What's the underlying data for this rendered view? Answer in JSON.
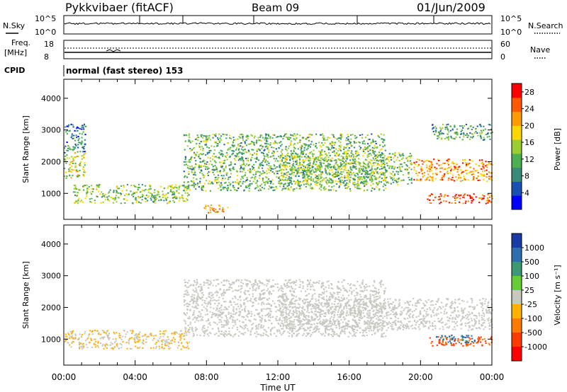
{
  "header": {
    "site": "Pykkvibaer (fitACF)",
    "beam": "Beam 09",
    "date": "01/Jun/2009"
  },
  "top_panels": {
    "nsky_label": "N.Sky",
    "nsky_ticks": [
      "10^5",
      "10^0"
    ],
    "nsearch_label": "N.Search",
    "nsearch_ticks": [
      "10^5",
      "10^0"
    ],
    "freq_label_1": "Freq.",
    "freq_label_2": "[MHz]",
    "freq_ticks": [
      "18",
      "8"
    ],
    "nave_label": "Nave",
    "nave_ticks": [
      "60",
      "0"
    ],
    "cpid_label": "CPID",
    "cpid_text": "normal (fast stereo) 153"
  },
  "colors": {
    "power_scale": [
      "#0000ff",
      "#1a4fb5",
      "#3a8a7a",
      "#4caf50",
      "#9acd32",
      "#ffd700",
      "#ff9a00",
      "#ff5a00",
      "#ff0000"
    ],
    "velocity_scale": [
      "#1a3aa8",
      "#2f6fb0",
      "#3c9a72",
      "#66cc33",
      "#c8c8c0",
      "#ffb000",
      "#ff7a00",
      "#ff3a00",
      "#ff0000"
    ],
    "ground_scatter": "#c8c8c0"
  },
  "chart_data": [
    {
      "type": "heatmap",
      "panel": "power",
      "ylabel": "Slant Range [km]",
      "xlabel": "",
      "x_ticks": [
        "00:00",
        "04:00",
        "08:00",
        "12:00",
        "16:00",
        "20:00",
        "00:00"
      ],
      "xlim_hours": [
        0,
        24
      ],
      "ylim": [
        180,
        4600
      ],
      "y_ticks": [
        1000,
        2000,
        3000,
        4000
      ],
      "colorbar": {
        "label": "Power [dB]",
        "ticks": [
          "28",
          "24",
          "20",
          "16",
          "12",
          "8",
          "4"
        ],
        "range": [
          0,
          30
        ]
      },
      "echo_bands": [
        {
          "t_start": 0.0,
          "t_end": 1.2,
          "range_start": 1500,
          "range_end": 2300,
          "level": 16
        },
        {
          "t_start": 0.0,
          "t_end": 1.2,
          "range_start": 2300,
          "range_end": 3200,
          "level": 8
        },
        {
          "t_start": 0.5,
          "t_end": 7.0,
          "range_start": 700,
          "range_end": 1300,
          "level": 14
        },
        {
          "t_start": 6.7,
          "t_end": 18.0,
          "range_start": 1100,
          "range_end": 2900,
          "level": 12
        },
        {
          "t_start": 7.8,
          "t_end": 9.2,
          "range_start": 400,
          "range_end": 650,
          "level": 20
        },
        {
          "t_start": 12.0,
          "t_end": 19.5,
          "range_start": 1300,
          "range_end": 2300,
          "level": 14
        },
        {
          "t_start": 19.6,
          "t_end": 24.0,
          "range_start": 1400,
          "range_end": 2100,
          "level": 22
        },
        {
          "t_start": 20.3,
          "t_end": 24.0,
          "range_start": 700,
          "range_end": 1000,
          "level": 26
        },
        {
          "t_start": 20.6,
          "t_end": 24.0,
          "range_start": 2700,
          "range_end": 3200,
          "level": 10
        }
      ]
    },
    {
      "type": "heatmap",
      "panel": "velocity",
      "ylabel": "Slant Range [km]",
      "xlabel": "Time UT",
      "x_ticks": [
        "00:00",
        "04:00",
        "08:00",
        "12:00",
        "16:00",
        "20:00",
        "00:00"
      ],
      "xlim_hours": [
        0,
        24
      ],
      "ylim": [
        180,
        4600
      ],
      "y_ticks": [
        1000,
        2000,
        3000,
        4000
      ],
      "colorbar": {
        "label": "Velocity [m s⁻¹]",
        "ticks": [
          "1000",
          "500",
          "100",
          "25",
          "-25",
          "-100",
          "-500",
          "-1000"
        ]
      },
      "echo_bands": [
        {
          "t_start": 0.0,
          "t_end": 7.0,
          "range_start": 700,
          "range_end": 1300,
          "velocity": -25
        },
        {
          "t_start": 6.7,
          "t_end": 18.0,
          "range_start": 1100,
          "range_end": 2900,
          "velocity": 0
        },
        {
          "t_start": 12.0,
          "t_end": 24.0,
          "range_start": 1300,
          "range_end": 2300,
          "velocity": 0
        },
        {
          "t_start": 20.4,
          "t_end": 24.0,
          "range_start": 800,
          "range_end": 1100,
          "velocity": -400
        },
        {
          "t_start": 20.8,
          "t_end": 23.0,
          "range_start": 900,
          "range_end": 1150,
          "velocity": 500
        }
      ]
    }
  ]
}
